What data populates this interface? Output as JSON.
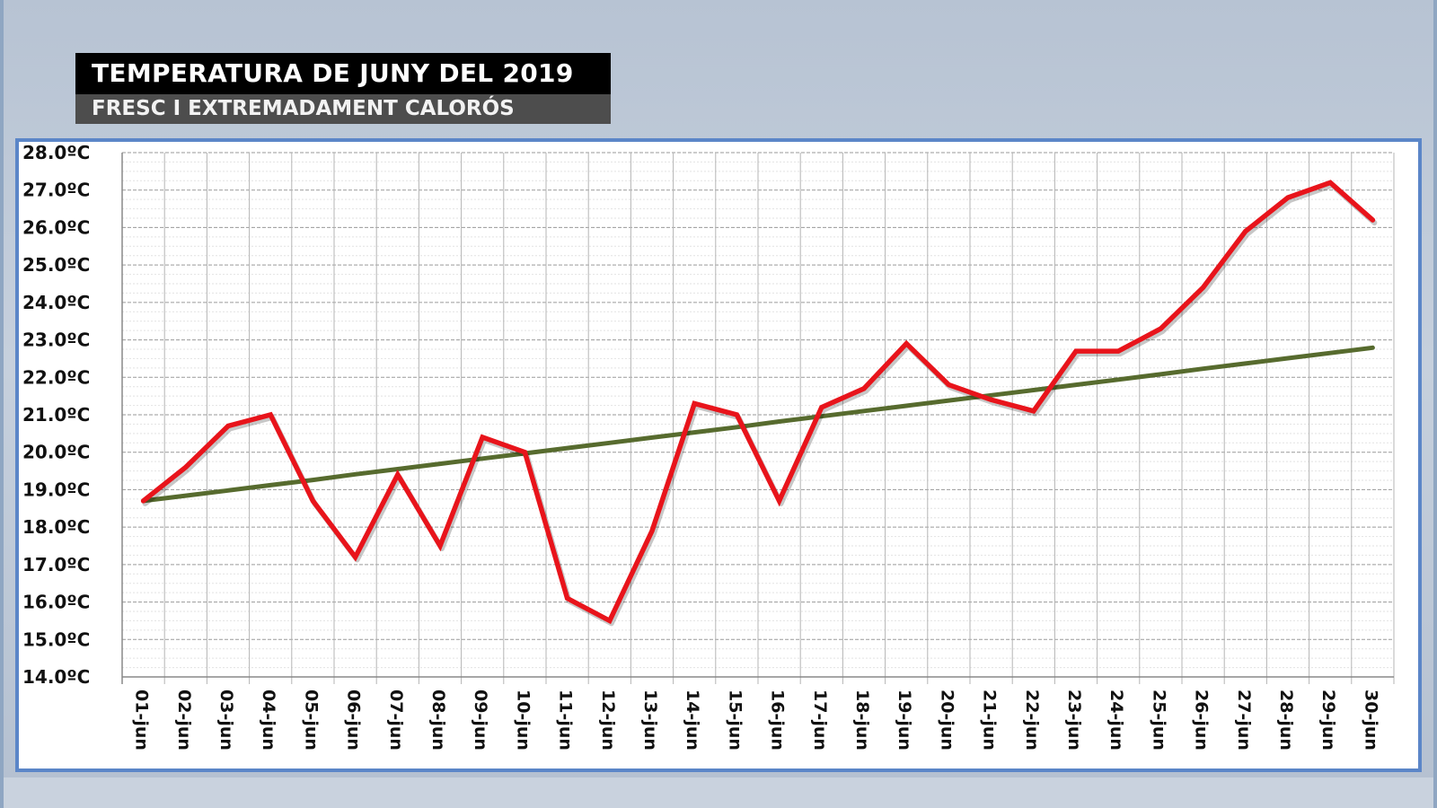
{
  "header": {
    "title": "TEMPERATURA DE JUNY DEL 2019",
    "subtitle": "FRESC I EXTREMADAMENT CALORÓS"
  },
  "colors": {
    "temperature_line": "#e8141b",
    "trend_line": "#576b2e",
    "panel_border": "#5b86c8"
  },
  "chart_data": {
    "type": "line",
    "title": "TEMPERATURA DE JUNY DEL 2019",
    "subtitle": "FRESC I EXTREMADAMENT CALORÓS",
    "xlabel": "",
    "ylabel": "",
    "categories": [
      "01-jun",
      "02-jun",
      "03-jun",
      "04-jun",
      "05-jun",
      "06-jun",
      "07-jun",
      "08-jun",
      "09-jun",
      "10-jun",
      "11-jun",
      "12-jun",
      "13-jun",
      "14-jun",
      "15-jun",
      "16-jun",
      "17-jun",
      "18-jun",
      "19-jun",
      "20-jun",
      "21-jun",
      "22-jun",
      "23-jun",
      "24-jun",
      "25-jun",
      "26-jun",
      "27-jun",
      "28-jun",
      "29-jun",
      "30-jun"
    ],
    "y_tick_labels": [
      "28.0ºC",
      "27.0ºC",
      "26.0ºC",
      "25.0ºC",
      "24.0ºC",
      "23.0ºC",
      "22.0ºC",
      "21.0ºC",
      "20.0ºC",
      "19.0ºC",
      "18.0ºC",
      "17.0ºC",
      "16.0ºC",
      "15.0ºC",
      "14.0ºC"
    ],
    "ylim": [
      14,
      28
    ],
    "grid": true,
    "series": [
      {
        "values": [
          18.7,
          19.6,
          20.7,
          21.0,
          18.7,
          17.2,
          19.4,
          17.5,
          20.4,
          20.0,
          16.1,
          15.5,
          17.9,
          21.3,
          21.0,
          18.7,
          21.2,
          21.7,
          22.9,
          21.8,
          21.4,
          21.1,
          22.7,
          22.7,
          23.3,
          24.4,
          25.9,
          26.8,
          27.2,
          26.2
        ],
        "color": "#e8141b"
      },
      {
        "values": [
          18.7,
          18.84,
          18.98,
          19.12,
          19.26,
          19.41,
          19.55,
          19.69,
          19.83,
          19.97,
          20.11,
          20.25,
          20.39,
          20.53,
          20.67,
          20.82,
          20.96,
          21.1,
          21.24,
          21.38,
          21.52,
          21.66,
          21.8,
          21.94,
          22.08,
          22.23,
          22.37,
          22.51,
          22.65,
          22.79
        ],
        "color": "#576b2e",
        "trend": "linear"
      }
    ]
  }
}
